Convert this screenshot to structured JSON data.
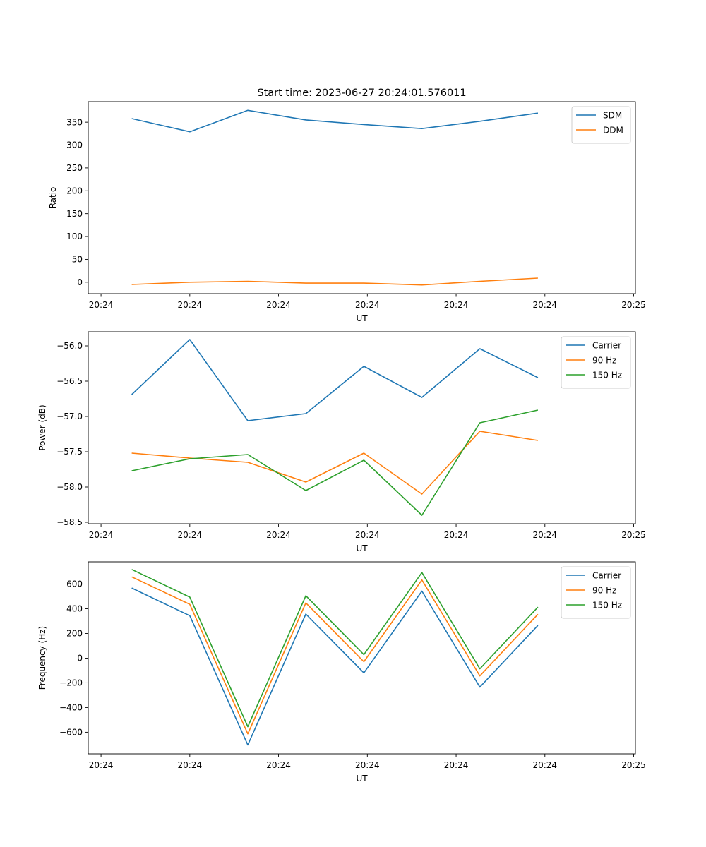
{
  "figure": {
    "title": "Start time: 2023-06-27 20:24:01.576011"
  },
  "chart_data": [
    {
      "type": "line",
      "xlabel": "UT",
      "ylabel": "Ratio",
      "xticks": [
        "20:24",
        "20:24",
        "20:24",
        "20:24",
        "20:24",
        "20:24",
        "20:25"
      ],
      "yticks": [
        0,
        50,
        100,
        150,
        200,
        250,
        300,
        350
      ],
      "ylim": [
        -25,
        395
      ],
      "x": [
        1,
        2,
        3,
        4,
        5,
        6,
        7,
        8
      ],
      "legend": "top-right",
      "series": [
        {
          "name": "SDM",
          "color": "#1f77b4",
          "values": [
            358,
            329,
            376,
            355,
            345,
            336,
            352,
            370
          ]
        },
        {
          "name": "DDM",
          "color": "#ff7f0e",
          "values": [
            -5,
            0,
            2,
            -2,
            -2,
            -6,
            2,
            9
          ]
        }
      ]
    },
    {
      "type": "line",
      "xlabel": "UT",
      "ylabel": "Power (dB)",
      "xticks": [
        "20:24",
        "20:24",
        "20:24",
        "20:24",
        "20:24",
        "20:24",
        "20:25"
      ],
      "yticks": [
        -58.5,
        -58.0,
        -57.5,
        -57.0,
        -56.5,
        -56.0
      ],
      "ytick_labels": [
        "−58.5",
        "−58.0",
        "−57.5",
        "−57.0",
        "−56.5",
        "−56.0"
      ],
      "ylim": [
        -58.52,
        -55.8
      ],
      "x": [
        1,
        2,
        3,
        4,
        5,
        6,
        7,
        8
      ],
      "legend": "top-right",
      "series": [
        {
          "name": "Carrier",
          "color": "#1f77b4",
          "values": [
            -56.69,
            -55.91,
            -57.06,
            -56.96,
            -56.29,
            -56.73,
            -56.04,
            -56.45
          ]
        },
        {
          "name": "90 Hz",
          "color": "#ff7f0e",
          "values": [
            -57.52,
            -57.59,
            -57.65,
            -57.93,
            -57.52,
            -58.1,
            -57.21,
            -57.34
          ]
        },
        {
          "name": "150 Hz",
          "color": "#2ca02c",
          "values": [
            -57.77,
            -57.6,
            -57.54,
            -58.05,
            -57.62,
            -58.4,
            -57.09,
            -56.91
          ]
        }
      ]
    },
    {
      "type": "line",
      "xlabel": "UT",
      "ylabel": "Frequency (Hz)",
      "xticks": [
        "20:24",
        "20:24",
        "20:24",
        "20:24",
        "20:24",
        "20:24",
        "20:25"
      ],
      "yticks": [
        -600,
        -400,
        -200,
        0,
        200,
        400,
        600
      ],
      "ytick_labels": [
        "−600",
        "−400",
        "−200",
        "0",
        "200",
        "400",
        "600"
      ],
      "ylim": [
        -775,
        780
      ],
      "x": [
        1,
        2,
        3,
        4,
        5,
        6,
        7,
        8
      ],
      "legend": "top-right",
      "series": [
        {
          "name": "Carrier",
          "color": "#1f77b4",
          "values": [
            568,
            344,
            -703,
            357,
            -119,
            543,
            -234,
            265
          ]
        },
        {
          "name": "90 Hz",
          "color": "#ff7f0e",
          "values": [
            658,
            436,
            -613,
            447,
            -29,
            633,
            -144,
            355
          ]
        },
        {
          "name": "150 Hz",
          "color": "#2ca02c",
          "values": [
            718,
            494,
            -555,
            505,
            29,
            693,
            -86,
            413
          ]
        }
      ]
    }
  ]
}
